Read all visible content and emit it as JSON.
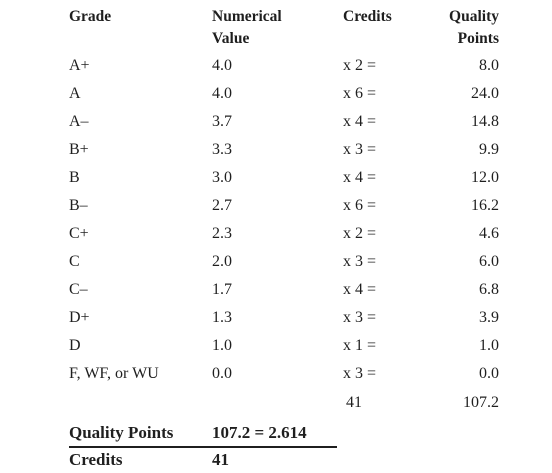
{
  "headers": {
    "grade": "Grade",
    "numerical_value_line1": "Numerical",
    "numerical_value_line2": "Value",
    "credits": "Credits",
    "quality_points_line1": "Quality",
    "quality_points_line2": "Points"
  },
  "rows": [
    {
      "grade": "A+",
      "value": "4.0",
      "credits": "x 2 =",
      "points": "8.0"
    },
    {
      "grade": "A",
      "value": "4.0",
      "credits": "x 6 =",
      "points": "24.0"
    },
    {
      "grade": "A–",
      "value": "3.7",
      "credits": "x 4 =",
      "points": "14.8"
    },
    {
      "grade": "B+",
      "value": "3.3",
      "credits": "x 3 =",
      "points": "9.9"
    },
    {
      "grade": "B",
      "value": "3.0",
      "credits": "x 4 =",
      "points": "12.0"
    },
    {
      "grade": "B–",
      "value": "2.7",
      "credits": "x 6 =",
      "points": "16.2"
    },
    {
      "grade": "C+",
      "value": "2.3",
      "credits": "x 2 =",
      "points": "4.6"
    },
    {
      "grade": "C",
      "value": "2.0",
      "credits": "x 3 =",
      "points": "6.0"
    },
    {
      "grade": "C–",
      "value": "1.7",
      "credits": "x 4 =",
      "points": "6.8"
    },
    {
      "grade": "D+",
      "value": "1.3",
      "credits": "x 3 =",
      "points": "3.9"
    },
    {
      "grade": "D",
      "value": "1.0",
      "credits": "x 1 =",
      "points": "1.0"
    },
    {
      "grade": "F, WF, or WU",
      "value": "0.0",
      "credits": "x 3 =",
      "points": "0.0"
    }
  ],
  "totals": {
    "credits": "41",
    "points": "107.2"
  },
  "fraction": {
    "numerator_label": "Quality Points",
    "result": "107.2 = 2.614",
    "denominator_label": "Credits",
    "denominator_value": "41"
  }
}
